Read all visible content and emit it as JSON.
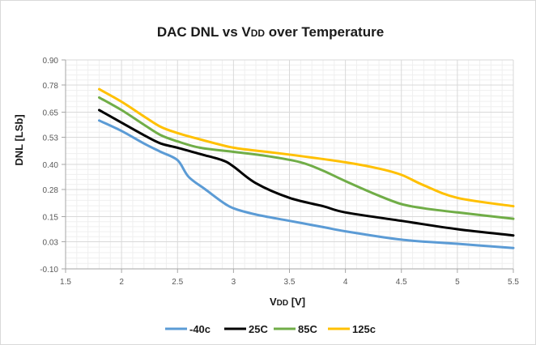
{
  "chart_data": {
    "type": "line",
    "title": "DAC DNL vs VDD over Temperature",
    "title_parts": {
      "main": "DAC DNL vs V",
      "sub": "DD",
      "rest": " over Temperature"
    },
    "xlabel": "VDD [V]",
    "xlabel_parts": {
      "main": "V",
      "sub": "DD",
      "rest": " [V]"
    },
    "ylabel": "DNL [LSb]",
    "xlim": [
      1.5,
      5.5
    ],
    "ylim": [
      -0.1,
      0.9
    ],
    "x_ticks": [
      "1.5",
      "2",
      "2.5",
      "3",
      "3.5",
      "4",
      "4.5",
      "5",
      "5.5"
    ],
    "y_ticks": [
      "-0.10",
      "0.03",
      "0.15",
      "0.28",
      "0.40",
      "0.53",
      "0.65",
      "0.78",
      "0.90"
    ],
    "grid": true,
    "legend_position": "bottom",
    "series": [
      {
        "name": "-40c",
        "color": "#5b9bd5",
        "x": [
          1.8,
          2.0,
          2.2,
          2.35,
          2.5,
          2.6,
          2.75,
          2.9,
          3.0,
          3.2,
          3.5,
          3.8,
          4.0,
          4.5,
          5.0,
          5.5
        ],
        "y": [
          0.61,
          0.56,
          0.5,
          0.46,
          0.42,
          0.34,
          0.28,
          0.22,
          0.19,
          0.16,
          0.13,
          0.1,
          0.08,
          0.04,
          0.02,
          0.0
        ]
      },
      {
        "name": "25C",
        "color": "#000000",
        "x": [
          1.8,
          2.0,
          2.2,
          2.35,
          2.5,
          2.7,
          2.9,
          3.0,
          3.2,
          3.5,
          3.8,
          4.0,
          4.5,
          5.0,
          5.5
        ],
        "y": [
          0.66,
          0.6,
          0.54,
          0.5,
          0.48,
          0.45,
          0.42,
          0.39,
          0.31,
          0.24,
          0.2,
          0.17,
          0.13,
          0.09,
          0.06
        ]
      },
      {
        "name": "85C",
        "color": "#70ad47",
        "x": [
          1.8,
          2.0,
          2.2,
          2.35,
          2.5,
          2.7,
          3.0,
          3.3,
          3.6,
          3.8,
          4.0,
          4.3,
          4.5,
          4.7,
          5.0,
          5.5
        ],
        "y": [
          0.72,
          0.66,
          0.59,
          0.54,
          0.51,
          0.48,
          0.46,
          0.44,
          0.41,
          0.37,
          0.32,
          0.25,
          0.21,
          0.19,
          0.17,
          0.14
        ]
      },
      {
        "name": "125c",
        "color": "#ffc000",
        "x": [
          1.8,
          2.0,
          2.2,
          2.35,
          2.5,
          2.7,
          3.0,
          3.3,
          3.6,
          4.0,
          4.3,
          4.5,
          4.7,
          5.0,
          5.5
        ],
        "y": [
          0.76,
          0.7,
          0.63,
          0.58,
          0.55,
          0.52,
          0.48,
          0.46,
          0.44,
          0.41,
          0.38,
          0.35,
          0.3,
          0.24,
          0.2
        ]
      }
    ]
  }
}
